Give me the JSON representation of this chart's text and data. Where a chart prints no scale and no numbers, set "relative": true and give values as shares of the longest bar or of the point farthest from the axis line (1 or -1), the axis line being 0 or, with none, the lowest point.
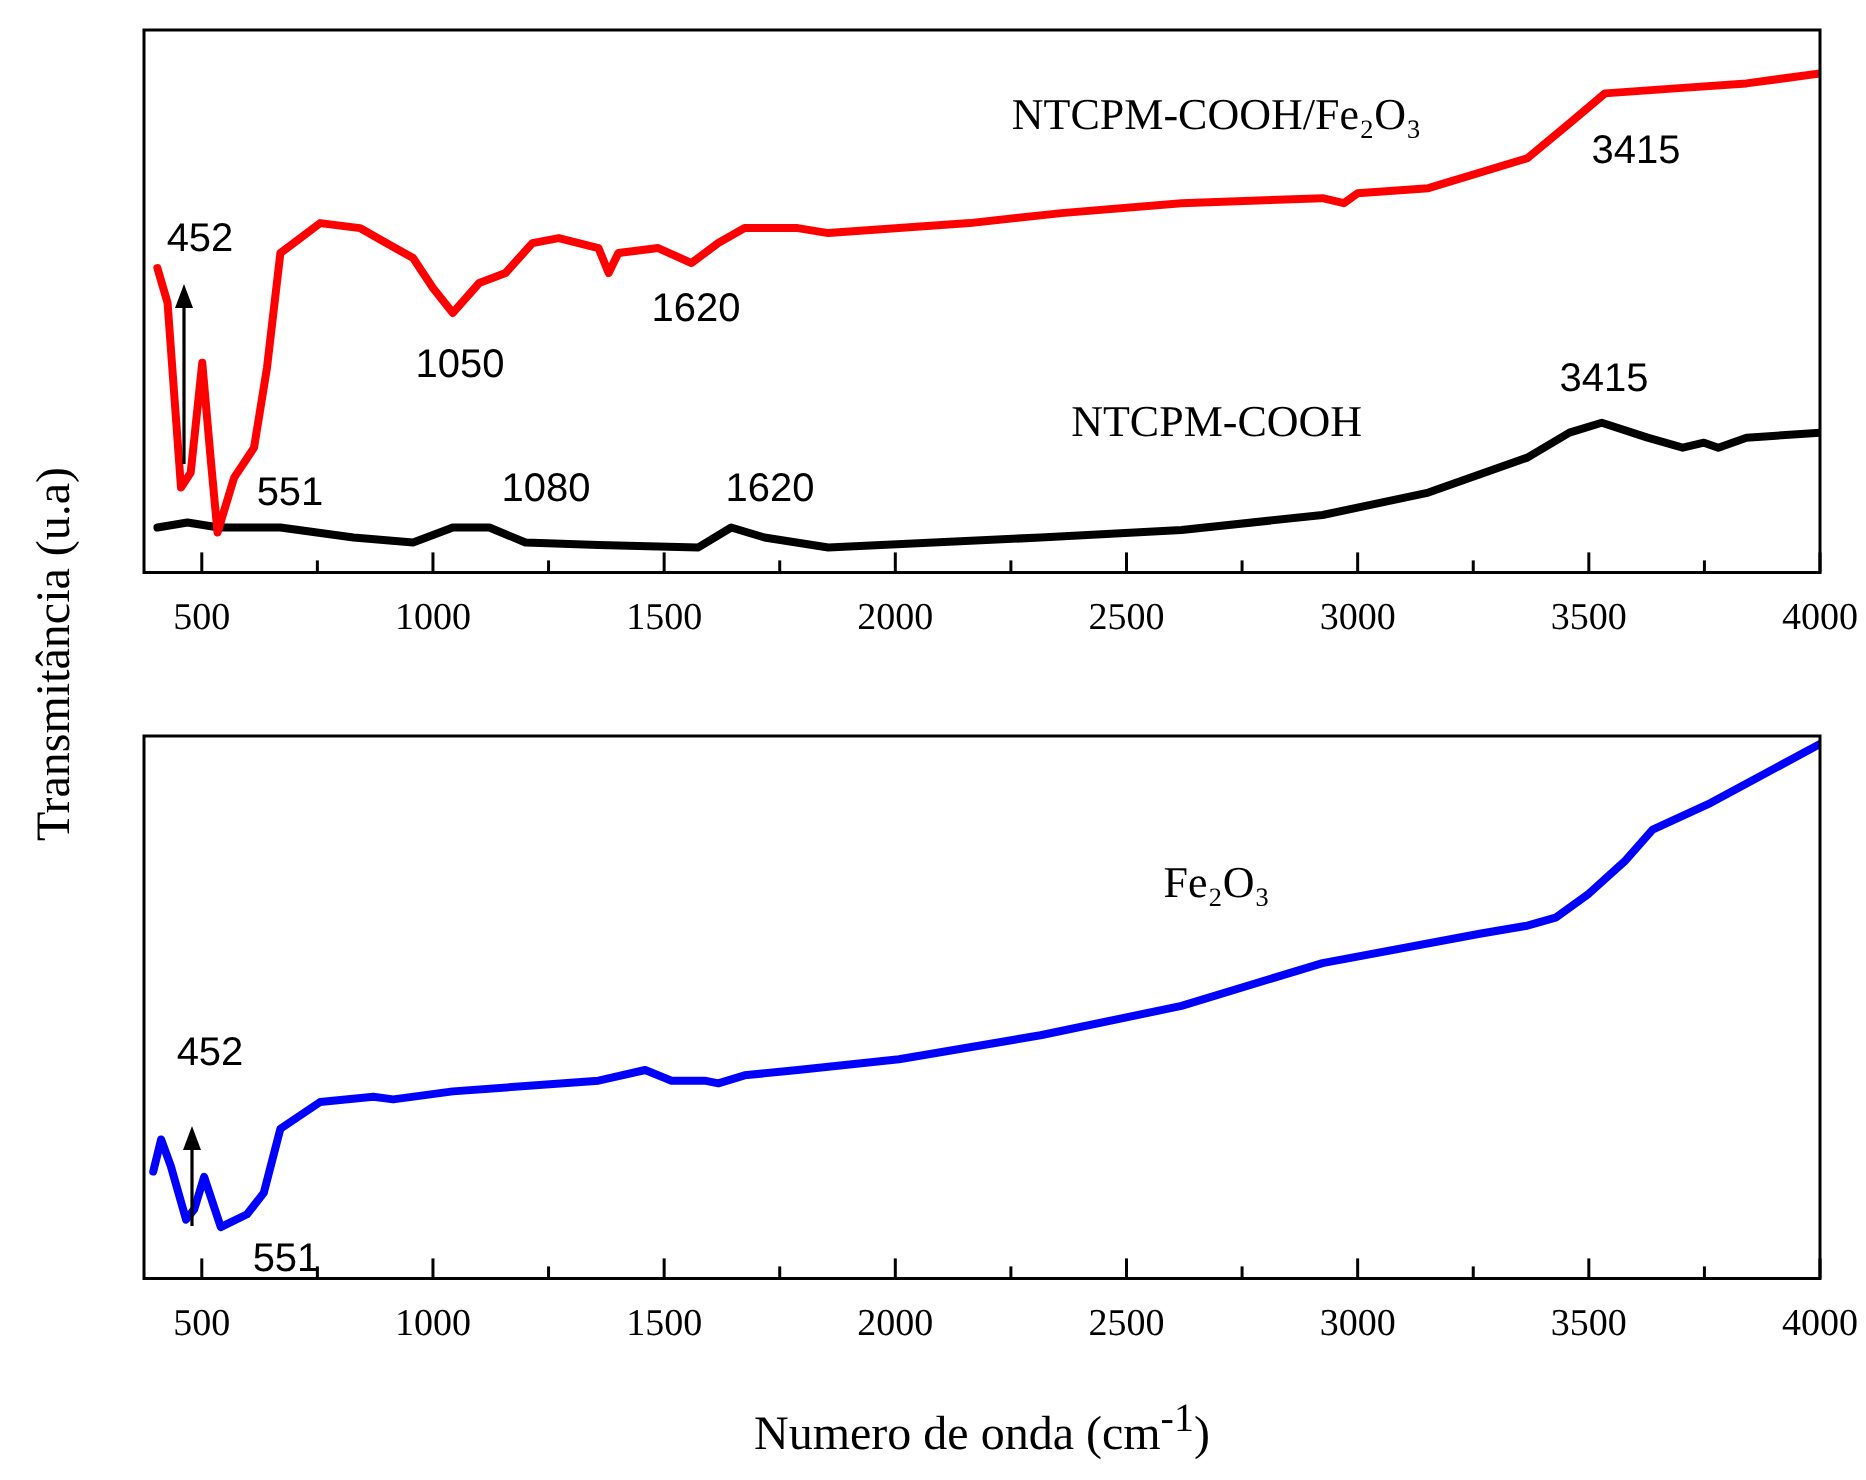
{
  "chart_data": [
    {
      "type": "line",
      "relative": true,
      "ylabel": "Transmitância (u.a)",
      "xlim": [
        375,
        4000
      ],
      "xticks": [
        500,
        {
          "value": 750,
          "label": null
        },
        1000,
        {
          "value": 1250,
          "label": null
        },
        1500,
        {
          "value": 1750,
          "label": null
        },
        2000,
        {
          "value": 2250,
          "label": null
        },
        2500,
        {
          "value": 2750,
          "label": null
        },
        3000,
        {
          "value": 3250,
          "label": null
        },
        3500,
        {
          "value": 3750,
          "label": null
        },
        4000
      ],
      "series": [
        {
          "name": "NTCPM-COOH/Fe₂O₃",
          "color": "#ff0000",
          "x": [
            404,
            426,
            455,
            476,
            501,
            519,
            534,
            570,
            613,
            641,
            670,
            699,
            756,
            842,
            899,
            957,
            1000,
            1043,
            1100,
            1157,
            1215,
            1272,
            1358,
            1380,
            1401,
            1487,
            1559,
            1617,
            1674,
            1789,
            1855,
            2161,
            2359,
            2619,
            2924,
            2970,
            3000,
            3153,
            3367,
            3458,
            3535,
            3688,
            3841,
            4000
          ],
          "values": [
            0.61,
            0.54,
            0.17,
            0.2,
            0.42,
            0.23,
            0.08,
            0.19,
            0.25,
            0.41,
            0.64,
            0.66,
            0.7,
            0.69,
            0.66,
            0.63,
            0.57,
            0.52,
            0.58,
            0.6,
            0.66,
            0.67,
            0.65,
            0.6,
            0.64,
            0.65,
            0.62,
            0.66,
            0.69,
            0.69,
            0.68,
            0.7,
            0.72,
            0.74,
            0.75,
            0.74,
            0.76,
            0.77,
            0.83,
            0.9,
            0.96,
            0.97,
            0.98,
            1
          ]
        },
        {
          "name": "NTCPM-COOH",
          "color": "#000000",
          "x": [
            404,
            469,
            537,
            670,
            828,
            957,
            1043,
            1122,
            1200,
            1358,
            1574,
            1645,
            1717,
            1855,
            2314,
            2619,
            2924,
            3153,
            3367,
            3458,
            3528,
            3627,
            3703,
            3749,
            3780,
            3841,
            4000
          ],
          "values": [
            0.09,
            0.1,
            0.09,
            0.09,
            0.07,
            0.06,
            0.09,
            0.09,
            0.06,
            0.055,
            0.05,
            0.09,
            0.07,
            0.05,
            0.07,
            0.085,
            0.115,
            0.16,
            0.23,
            0.28,
            0.3,
            0.27,
            0.25,
            0.26,
            0.25,
            0.27,
            0.28
          ]
        }
      ],
      "annotations": [
        "452",
        "551",
        "1050",
        "1620",
        "1080",
        "1620",
        "3415",
        "3415"
      ]
    },
    {
      "type": "line",
      "relative": true,
      "xlabel": "Numero de onda (cm$^{-1}$)",
      "xlim": [
        375,
        4000
      ],
      "xticks": [
        500,
        {
          "value": 750,
          "label": null
        },
        1000,
        {
          "value": 1250,
          "label": null
        },
        1500,
        {
          "value": 1750,
          "label": null
        },
        2000,
        {
          "value": 2250,
          "label": null
        },
        2500,
        {
          "value": 2750,
          "label": null
        },
        3000,
        {
          "value": 3250,
          "label": null
        },
        3500,
        {
          "value": 3750,
          "label": null
        },
        4000
      ],
      "series": [
        {
          "name": "Fe₂O₃",
          "color": "#0000ff",
          "x": [
            395,
            412,
            433,
            466,
            484,
            505,
            541,
            598,
            634,
            670,
            756,
            871,
            914,
            1043,
            1358,
            1459,
            1516,
            1588,
            1617,
            1674,
            1789,
            2008,
            2314,
            2619,
            2924,
            3264,
            3367,
            3428,
            3500,
            3577,
            3638,
            3764,
            4000
          ],
          "values": [
            0.2,
            0.26,
            0.21,
            0.11,
            0.13,
            0.19,
            0.096,
            0.12,
            0.16,
            0.28,
            0.33,
            0.34,
            0.335,
            0.35,
            0.37,
            0.39,
            0.37,
            0.37,
            0.365,
            0.38,
            0.39,
            0.41,
            0.455,
            0.51,
            0.59,
            0.645,
            0.66,
            0.675,
            0.72,
            0.78,
            0.84,
            0.89,
            1
          ]
        }
      ],
      "annotations": [
        "452",
        "551"
      ]
    }
  ]
}
